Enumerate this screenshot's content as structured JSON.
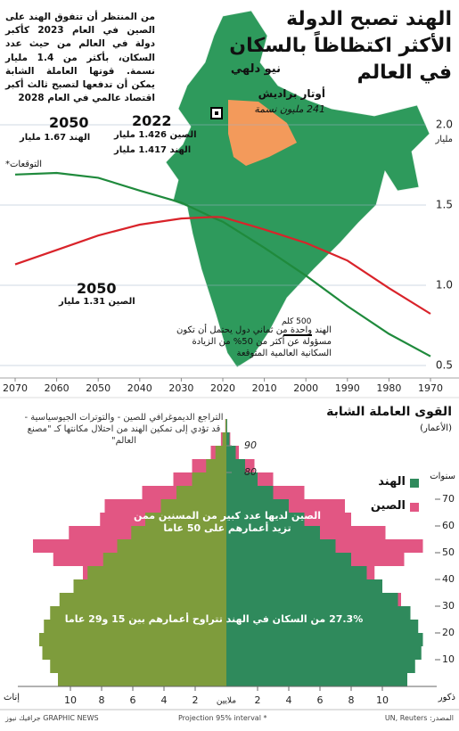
{
  "title_lines": [
    "الهند تصبح الدولة",
    "الأكثر اكتظاظاً بالسكان",
    "في العالم"
  ],
  "intro": "من المنتظر أن تتفوق الهند على الصين في العام 2023 كأكبر دولة في العالم من حيث عدد السكان، بأكثر من 1.4 مليار نسمة. قوتها العاملة الشابة يمكن أن تدفعها لتصبح ثالث أكبر اقتصاد عالمي في العام 2028",
  "map_labels": [
    "نيو دلهي",
    "أوتار براديش",
    "241 مليون نسمة",
    "500 كلم"
  ],
  "footer": [
    "GRAPHIC NEWS جرافيك نيوز",
    "* Projection 95% interval",
    "المصدر: UN, Reuters"
  ],
  "chart_data": [
    {
      "type": "line",
      "x": [
        1970,
        1980,
        1990,
        2000,
        2010,
        2020,
        2022,
        2030,
        2040,
        2050,
        2060,
        2070
      ],
      "xlim": [
        2070,
        1970
      ],
      "xticks": [
        2070,
        2060,
        2050,
        2040,
        2030,
        2020,
        2010,
        2000,
        1990,
        1980,
        1970
      ],
      "ylim": [
        0.5,
        2.0
      ],
      "yticks": [
        0.5,
        {
          "value": 1.0,
          "label": "1.0"
        },
        1.5,
        {
          "value": 2.0,
          "label": "2.0"
        }
      ],
      "y_unit": "مليار",
      "grid": true,
      "series": [
        {
          "color": "#1f8a3c",
          "values": [
            0.557,
            0.697,
            0.87,
            1.06,
            1.234,
            1.396,
            1.417,
            1.515,
            1.59,
            1.67,
            1.7,
            1.69
          ]
        },
        {
          "color": "#d9232a",
          "values": [
            0.822,
            0.982,
            1.154,
            1.264,
            1.348,
            1.424,
            1.426,
            1.416,
            1.378,
            1.31,
            1.22,
            1.13
          ]
        }
      ],
      "annotations": [
        "2050",
        "الهند 1.67 مليار",
        "التوقعات*",
        "2022",
        "الصين 1.426 مليار",
        "الهند 1.417 مليار",
        "2050",
        "الصين 1.31 مليار",
        "الهند واحدة من ثماني دول يحتمل أن تكون مسؤولة عن أكثر من 50% من الزيادة السكانية العالمية المتوقعة"
      ]
    },
    {
      "type": "pyramid",
      "title": "القوى العاملة الشابة",
      "subtitle": "(الأعمار)",
      "note": "التراجع الديموغرافي للصين - والتوترات الجيوسياسية - قد تؤدي إلى تمكين الهند من احتلال مكانتها كـ \"مصنع العالم\"",
      "y_unit": "سنوات",
      "x_unit": "ملايين",
      "left_label": "إناث",
      "right_label": "ذكور",
      "age_bins": [
        0,
        5,
        10,
        15,
        20,
        25,
        30,
        35,
        40,
        45,
        50,
        55,
        60,
        65,
        70,
        75,
        80,
        85,
        90,
        95,
        100
      ],
      "ylim": [
        0,
        100
      ],
      "yticks": [
        10,
        20,
        30,
        40,
        50,
        60,
        70,
        80,
        90
      ],
      "xlim": [
        -14,
        14
      ],
      "xticks": [
        {
          "value": -10,
          "label": "10"
        },
        {
          "value": -8,
          "label": "8"
        },
        {
          "value": -6,
          "label": "6"
        },
        {
          "value": -4,
          "label": "4"
        },
        {
          "value": -2,
          "label": "2"
        },
        2,
        4,
        6,
        8,
        10
      ],
      "series": [
        {
          "name": "الصين",
          "colors": [
            "#e25683",
            "#e25683"
          ],
          "female": [
            -7.4,
            -7.9,
            -7.8,
            -7.0,
            -7.0,
            -8.6,
            -10.6,
            -8.9,
            -9.2,
            -11.1,
            -12.4,
            -10.1,
            -8.1,
            -7.8,
            -5.4,
            -3.4,
            -2.2,
            -1.0,
            -0.35,
            -0.07
          ],
          "male": [
            8.3,
            8.9,
            8.8,
            8.0,
            7.8,
            9.4,
            11.2,
            9.3,
            9.5,
            11.4,
            12.6,
            10.2,
            8.0,
            7.6,
            5.0,
            3.0,
            1.8,
            0.8,
            0.25,
            0.04
          ]
        },
        {
          "name": "الهند",
          "colors": [
            "#7e9c3c",
            "#2f8a5c"
          ],
          "female": [
            -10.8,
            -11.3,
            -11.8,
            -12.0,
            -11.7,
            -11.3,
            -10.7,
            -9.8,
            -8.9,
            -7.9,
            -7.0,
            -6.1,
            -5.2,
            -4.2,
            -3.2,
            -2.2,
            -1.3,
            -0.7,
            -0.25,
            -0.06
          ],
          "male": [
            11.6,
            12.1,
            12.5,
            12.6,
            12.3,
            11.8,
            11.0,
            10.0,
            9.0,
            8.0,
            7.0,
            6.0,
            5.0,
            4.0,
            3.0,
            2.0,
            1.2,
            0.6,
            0.2,
            0.05
          ]
        }
      ],
      "annotations": [
        "الصين لديها عدد كبير من المسنين ممن تزيد أعمارهم على 50 عاما",
        "27.3% من السكان في الهند تتراوح أعمارهم بين 15 و29 عاما"
      ]
    }
  ]
}
